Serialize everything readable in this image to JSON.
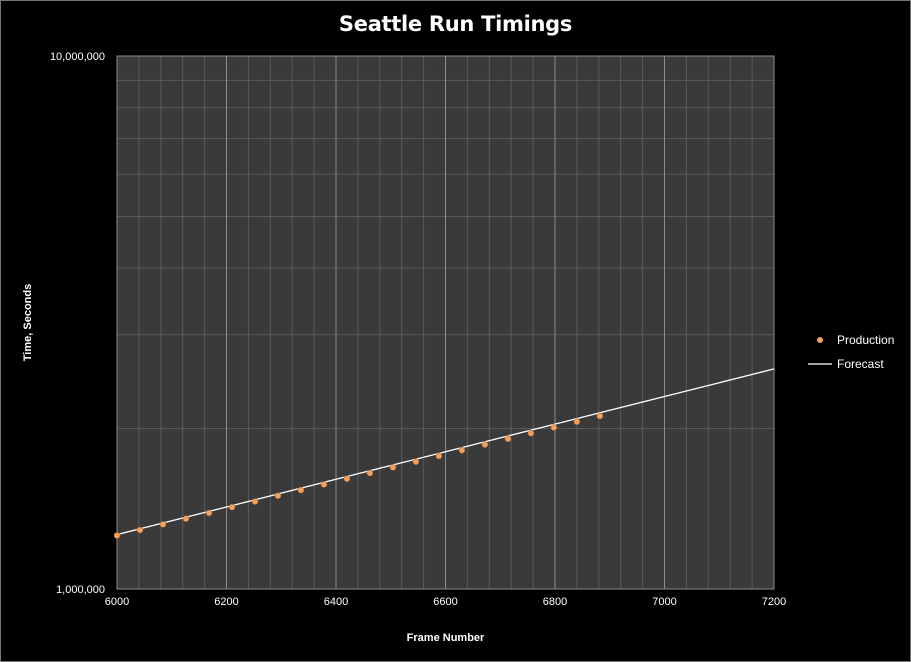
{
  "chart_data": {
    "type": "scatter",
    "title": "Seattle Run Timings",
    "xlabel": "Frame Number",
    "ylabel": "Time, Seconds",
    "xlim": [
      6000,
      7200
    ],
    "ylim": [
      1000000,
      10000000
    ],
    "yscale": "log",
    "x_ticks": [
      6000,
      6200,
      6400,
      6600,
      6800,
      7000,
      7200
    ],
    "y_ticks": [
      "1,000,000",
      "10,000,000"
    ],
    "grid": true,
    "legend_position": "right",
    "colors": {
      "plot_background": "#3a3a3a",
      "grid_major": "#8c8c8c",
      "grid_minor": "#5a5a5a",
      "production": "#f0a060",
      "forecast": "#ffffff"
    },
    "series": [
      {
        "name": "Production",
        "kind": "scatter",
        "x": [
          6000,
          6042,
          6084,
          6126,
          6168,
          6210,
          6252,
          6294,
          6336,
          6378,
          6420,
          6462,
          6504,
          6546,
          6588,
          6630,
          6672,
          6714,
          6756,
          6798,
          6840,
          6882
        ],
        "y": [
          1260000,
          1290000,
          1322000,
          1355000,
          1389000,
          1424000,
          1459000,
          1496000,
          1533000,
          1571000,
          1610000,
          1650000,
          1691000,
          1733000,
          1776000,
          1821000,
          1866000,
          1913000,
          1960000,
          2009000,
          2060000,
          2111000
        ]
      },
      {
        "name": "Forecast",
        "kind": "line",
        "x": [
          6000,
          6100,
          6200,
          6300,
          6400,
          6500,
          6600,
          6700,
          6800,
          6900,
          7000,
          7100,
          7200
        ],
        "y": [
          1265000,
          1343000,
          1425000,
          1513000,
          1606000,
          1705000,
          1810000,
          1921000,
          2039000,
          2164000,
          2297000,
          2438000,
          2588000
        ]
      }
    ]
  }
}
